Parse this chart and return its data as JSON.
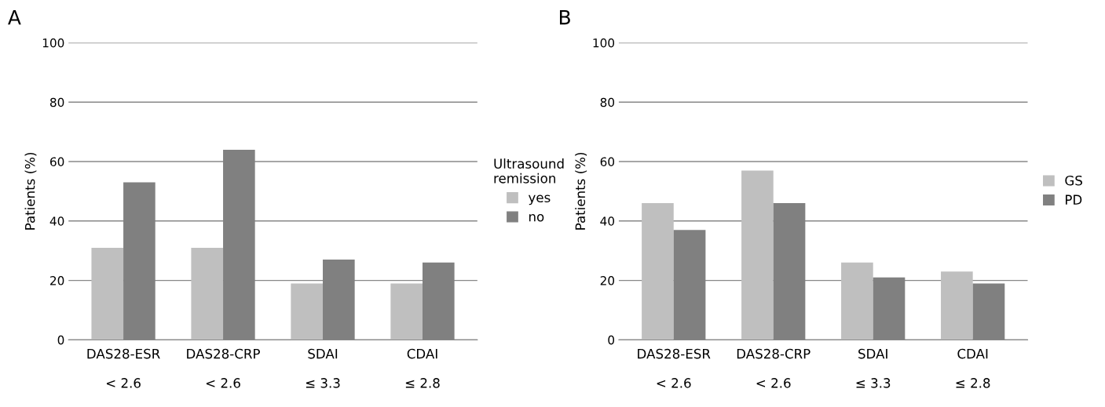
{
  "chart_data": [
    {
      "type": "bar",
      "title": "A",
      "ylabel": "Patients (%)",
      "legend_title": "Ultrasound\nremission",
      "categories": [
        "DAS28-ESR\n\n< 2.6",
        "DAS28-CRP\n\n< 2.6",
        "SDAI\n\n≤ 3.3",
        "CDAI\n\n≤ 2.8"
      ],
      "series": [
        {
          "name": "yes",
          "color": "#bfbfbf",
          "values": [
            31,
            31,
            19,
            19
          ]
        },
        {
          "name": "no",
          "color": "#808080",
          "values": [
            53,
            64,
            27,
            26
          ]
        }
      ],
      "ylim": [
        0,
        100
      ],
      "yticks": [
        0,
        20,
        40,
        60,
        80,
        100
      ],
      "grid": "y",
      "legend": "right"
    },
    {
      "type": "bar",
      "title": "B",
      "ylabel": "Patients (%)",
      "categories": [
        "DAS28-ESR\n\n< 2.6",
        "DAS28-CRP\n\n< 2.6",
        "SDAI\n\n≤ 3.3",
        "CDAI\n\n≤ 2.8"
      ],
      "series": [
        {
          "name": "GS",
          "color": "#bfbfbf",
          "values": [
            46,
            57,
            26,
            23
          ]
        },
        {
          "name": "PD",
          "color": "#808080",
          "values": [
            37,
            46,
            21,
            19
          ]
        }
      ],
      "ylim": [
        0,
        100
      ],
      "yticks": [
        0,
        20,
        40,
        60,
        80,
        100
      ],
      "grid": "y",
      "legend": "right"
    }
  ]
}
